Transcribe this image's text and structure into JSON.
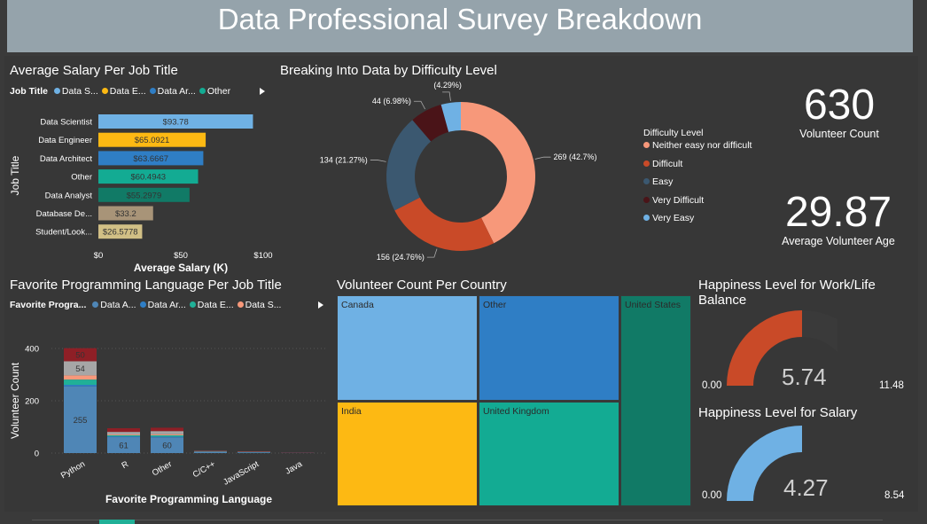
{
  "header": {
    "title": "Data Professional Survey Breakdown"
  },
  "colors": {
    "data_scientist": "#6fb1e4",
    "data_engineer": "#fdb913",
    "data_architect": "#2f7ec5",
    "other": "#13ab93",
    "data_analyst": "#117a66",
    "database_dev": "#a89478",
    "student": "#d1bf85"
  },
  "salary_panel": {
    "title": "Average Salary Per Job Title",
    "legend_title": "Job Title",
    "legend_items": [
      {
        "label": "Data S...",
        "color": "#6fb1e4"
      },
      {
        "label": "Data E...",
        "color": "#fdb913"
      },
      {
        "label": "Data Ar...",
        "color": "#2f7ec5"
      },
      {
        "label": "Other",
        "color": "#13ab93"
      }
    ]
  },
  "difficulty_panel": {
    "title": "Breaking Into Data by Difficulty Level",
    "legend_title": "Difficulty Level",
    "legend_items": [
      {
        "label": "Neither easy nor difficult",
        "color": "#f7987a"
      },
      {
        "label": "Difficult",
        "color": "#c94a28"
      },
      {
        "label": "Easy",
        "color": "#3b5870"
      },
      {
        "label": "Very Difficult",
        "color": "#4a1418"
      },
      {
        "label": "Very Easy",
        "color": "#6fb1e4"
      }
    ]
  },
  "kpis": {
    "volunteer_count": {
      "value": "630",
      "label": "Volunteer Count"
    },
    "avg_age": {
      "value": "29.87",
      "label": "Average Volunteer Age"
    }
  },
  "language_panel": {
    "title": "Favorite Programming Language Per Job Title",
    "legend_title": "Favorite Progra...",
    "legend_items": [
      {
        "label": "Data A...",
        "color": "#4f86b6"
      },
      {
        "label": "Data Ar...",
        "color": "#2f7ec5"
      },
      {
        "label": "Data E...",
        "color": "#20b097"
      },
      {
        "label": "Data S...",
        "color": "#f7987a"
      }
    ]
  },
  "country_panel": {
    "title": "Volunteer Count Per Country",
    "cells": [
      {
        "label": "Canada",
        "color": "#6fb1e4"
      },
      {
        "label": "Other",
        "color": "#2f7ec5"
      },
      {
        "label": "United States",
        "color": "#117a66"
      },
      {
        "label": "India",
        "color": "#fdb913"
      },
      {
        "label": "United Kingdom",
        "color": "#13ab93"
      }
    ]
  },
  "gauges": {
    "work_life": {
      "title": "Happiness Level for Work/Life Balance",
      "value": "5.74",
      "min": "0.00",
      "max": "11.48",
      "color": "#c94a28"
    },
    "salary": {
      "title": "Happiness Level for Salary",
      "value": "4.27",
      "min": "0.00",
      "max": "8.54",
      "color": "#6fb1e4"
    }
  },
  "chart_data": [
    {
      "type": "bar",
      "orientation": "horizontal",
      "title": "Average Salary Per Job Title",
      "xlabel": "Average Salary (K)",
      "ylabel": "Job Title",
      "xlim": [
        0,
        100
      ],
      "xticks": [
        "$0",
        "$50",
        "$100"
      ],
      "categories": [
        "Data Scientist",
        "Data Engineer",
        "Data Architect",
        "Other",
        "Data Analyst",
        "Database De...",
        "Student/Look..."
      ],
      "values": [
        93.78,
        65.0921,
        63.6667,
        60.4943,
        55.2979,
        33.2,
        26.5778
      ],
      "value_labels": [
        "$93.78",
        "$65.0921",
        "$63.6667",
        "$60.4943",
        "$55.2979",
        "$33.2",
        "$26.5778"
      ],
      "colors": [
        "#6fb1e4",
        "#fdb913",
        "#2f7ec5",
        "#13ab93",
        "#117a66",
        "#a89478",
        "#d1bf85"
      ]
    },
    {
      "type": "pie",
      "variant": "donut",
      "title": "Breaking Into Data by Difficulty Level",
      "categories": [
        "Neither easy nor difficult",
        "Difficult",
        "Easy",
        "Very Difficult",
        "Very Easy"
      ],
      "values": [
        269,
        156,
        134,
        44,
        27
      ],
      "labels": [
        "269 (42.7%)",
        "156 (24.76%)",
        "134 (21.27%)",
        "44 (6.98%)",
        "27 (4.29%)"
      ],
      "colors": [
        "#f7987a",
        "#c94a28",
        "#3b5870",
        "#4a1418",
        "#6fb1e4"
      ]
    },
    {
      "type": "bar",
      "variant": "stacked",
      "title": "Favorite Programming Language Per Job Title",
      "xlabel": "Favorite Programming Language",
      "ylabel": "Volunteer Count",
      "ylim": [
        0,
        420
      ],
      "yticks": [
        0,
        200,
        400
      ],
      "categories": [
        "Python",
        "R",
        "Other",
        "C/C++",
        "JavaScript",
        "Java"
      ],
      "series": [
        {
          "name": "Data A...",
          "color": "#4f86b6",
          "values": [
            255,
            61,
            60,
            4,
            2,
            1
          ],
          "labels": [
            "255",
            "61",
            "60",
            "",
            "",
            ""
          ]
        },
        {
          "name": "Data Ar...",
          "color": "#2f7ec5",
          "values": [
            6,
            3,
            3,
            1,
            1,
            0
          ],
          "labels": [
            "",
            "",
            "",
            "",
            "",
            ""
          ]
        },
        {
          "name": "Data E...",
          "color": "#20b097",
          "values": [
            20,
            4,
            5,
            1,
            1,
            0
          ],
          "labels": [
            "",
            "",
            "",
            "",
            "",
            ""
          ]
        },
        {
          "name": "Data S...",
          "color": "#f7987a",
          "values": [
            16,
            3,
            4,
            1,
            0,
            0
          ],
          "labels": [
            "",
            "",
            "",
            "",
            "",
            ""
          ]
        },
        {
          "name": "",
          "color": "#a6a6a6",
          "values": [
            54,
            10,
            12,
            1,
            1,
            0
          ],
          "labels": [
            "54",
            "",
            "",
            "",
            "",
            ""
          ]
        },
        {
          "name": "",
          "color": "#8e1f26",
          "values": [
            50,
            14,
            13,
            1,
            2,
            1
          ],
          "labels": [
            "50",
            "",
            "",
            "",
            "",
            ""
          ]
        }
      ]
    }
  ]
}
